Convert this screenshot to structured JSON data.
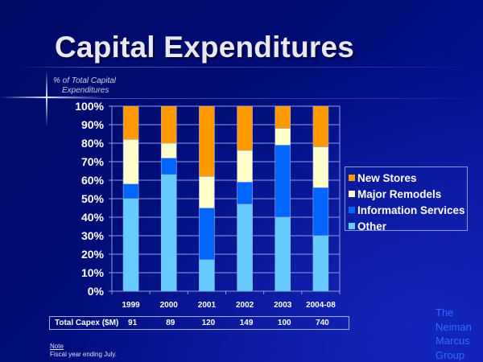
{
  "slide": {
    "title": "Capital Expenditures",
    "subtitle_line1": "% of Total Capital",
    "subtitle_line2": "Expenditures",
    "note_heading": "Note",
    "note_text": "Fiscal year ending July.",
    "brand_lines": [
      "The",
      "Neiman",
      "Marcus",
      "Group"
    ],
    "colors": {
      "background": "#000c78",
      "new_stores": "#ff9900",
      "major_remodels": "#ffffcc",
      "information_services": "#0066ff",
      "other": "#66ccff",
      "gridline": "#8e9ce0",
      "brand_text": "#2a6dff"
    }
  },
  "table": {
    "label": "Total Capex ($M)",
    "values": [
      "91",
      "89",
      "120",
      "149",
      "100",
      "740"
    ]
  },
  "chart_data": {
    "type": "bar",
    "stacked": true,
    "percent_stacked": true,
    "title": "Capital Expenditures",
    "ylabel": "% of Total Capital Expenditures",
    "xlabel": "",
    "categories": [
      "1999",
      "2000",
      "2001",
      "2002",
      "2003",
      "2004-08"
    ],
    "ylim": [
      0,
      100
    ],
    "yticks": [
      "0%",
      "10%",
      "20%",
      "30%",
      "40%",
      "50%",
      "60%",
      "70%",
      "80%",
      "90%",
      "100%"
    ],
    "grid": true,
    "legend_position": "right",
    "series": [
      {
        "name": "Other",
        "color": "#66ccff",
        "values": [
          50,
          63,
          17,
          47,
          40,
          30
        ]
      },
      {
        "name": "Information Services",
        "color": "#0066ff",
        "values": [
          8,
          9,
          28,
          12,
          39,
          26
        ]
      },
      {
        "name": "Major Remodels",
        "color": "#ffffcc",
        "values": [
          24,
          8,
          17,
          17,
          9,
          22
        ]
      },
      {
        "name": "New Stores",
        "color": "#ff9900",
        "values": [
          18,
          20,
          38,
          24,
          12,
          22
        ]
      }
    ],
    "legend_order": [
      "New Stores",
      "Major Remodels",
      "Information Services",
      "Other"
    ]
  }
}
